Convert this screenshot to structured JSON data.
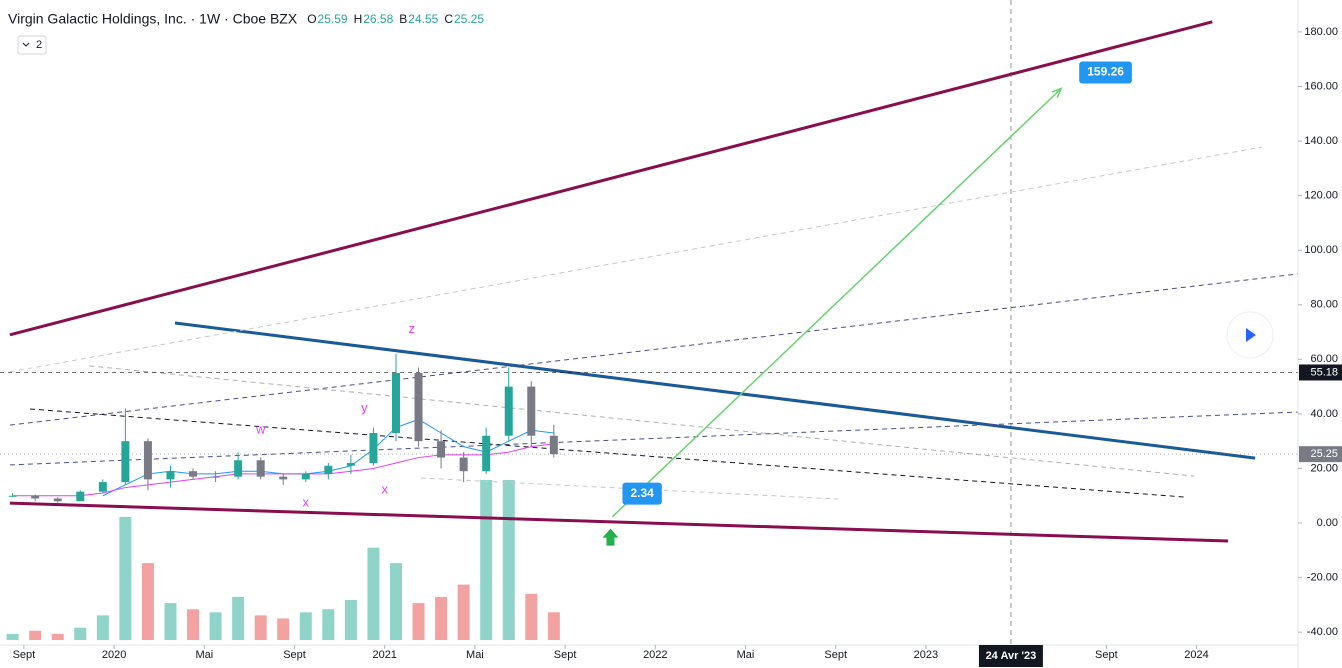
{
  "chart_data": {
    "type": "candlestick",
    "title": "Virgin Galactic Holdings, Inc. · 1W · Cboe BZX",
    "ohlc_legend": [
      {
        "label": "O",
        "value": 25.59
      },
      {
        "label": "H",
        "value": 26.58
      },
      {
        "label": "B",
        "value": 24.55
      },
      {
        "label": "C",
        "value": 25.25
      }
    ],
    "collapsed_indicators": 2,
    "x": [
      -0.5,
      0.5,
      1.5,
      2.5,
      3.5,
      4.5,
      5.5,
      6.5,
      7.5,
      8.5,
      9.5,
      10.5,
      11.5,
      12.5,
      13.5,
      14.5,
      15.5,
      16.5,
      17.5,
      18.5,
      19.5,
      20.5,
      21.5,
      22.5,
      23.5
    ],
    "open": [
      10,
      10,
      9,
      8,
      11.5,
      15,
      30,
      16,
      19,
      17,
      17,
      23,
      17,
      16,
      18,
      21,
      22,
      33,
      55,
      30,
      24,
      19,
      32,
      50,
      32
    ],
    "high": [
      11,
      10.5,
      9.5,
      12,
      16,
      42,
      31,
      21,
      20,
      19,
      26,
      24,
      18,
      19,
      22,
      25,
      35,
      62,
      57,
      34,
      26,
      35,
      57,
      52,
      36
    ],
    "low": [
      9.5,
      8,
      7.5,
      8,
      11,
      14,
      12,
      13,
      16,
      15,
      16,
      16,
      14,
      15,
      16,
      18,
      21,
      30,
      28,
      20,
      15,
      18,
      30,
      28,
      24
    ],
    "close": [
      10,
      9,
      8,
      11.5,
      15,
      30,
      16,
      19,
      17,
      17,
      23,
      17,
      16,
      18,
      21,
      22,
      33,
      55,
      30,
      24,
      19,
      32,
      50,
      32,
      25.25
    ],
    "up_color": "#26a69a",
    "down_color": "#787b86",
    "volume": [
      2,
      3,
      2,
      4,
      8,
      40,
      25,
      12,
      10,
      9,
      14,
      8,
      7,
      9,
      10,
      13,
      30,
      25,
      12,
      14,
      18,
      52,
      52,
      15,
      9
    ],
    "volume_up_color": "#8fd3c9",
    "volume_down_color": "#f2a3a1",
    "series": [
      {
        "color": "#2196f3",
        "values": [
          null,
          null,
          null,
          null,
          10,
          14,
          18,
          19,
          18,
          18,
          19,
          19,
          18,
          18,
          19,
          21,
          27,
          35,
          38,
          33,
          28,
          26,
          30,
          34,
          33
        ]
      },
      {
        "color": "#e040fb",
        "values": [
          10,
          10,
          10,
          10,
          11,
          13,
          14,
          15,
          16,
          17,
          18,
          18,
          18,
          18,
          18,
          19,
          20,
          22,
          24,
          25,
          25,
          25,
          26,
          28,
          29
        ]
      }
    ],
    "xlim": [
      -1.06,
      56.5
    ],
    "ylim": [
      -44.7,
      191.7
    ],
    "yticks": [
      {
        "value": -40,
        "label": "-40.00"
      },
      {
        "value": -20,
        "label": "-20.00"
      },
      {
        "value": 0,
        "label": "0.00"
      },
      {
        "value": 20,
        "label": "20.00"
      },
      {
        "value": 40,
        "label": "40.00"
      },
      {
        "value": 60,
        "label": "60.00"
      },
      {
        "value": 80,
        "label": "80.00"
      },
      {
        "value": 100,
        "label": "100.00"
      },
      {
        "value": 120,
        "label": "120.00"
      },
      {
        "value": 140,
        "label": "140.00"
      },
      {
        "value": 160,
        "label": "160.00"
      },
      {
        "value": 180,
        "label": "180.00"
      }
    ],
    "xticks": [
      {
        "value": 0,
        "label": "Sept"
      },
      {
        "value": 4,
        "label": "2020"
      },
      {
        "value": 8,
        "label": "Mai"
      },
      {
        "value": 12,
        "label": "Sept"
      },
      {
        "value": 16,
        "label": "2021"
      },
      {
        "value": 20,
        "label": "Mai"
      },
      {
        "value": 24,
        "label": "Sept"
      },
      {
        "value": 28,
        "label": "2022"
      },
      {
        "value": 32,
        "label": "Mai"
      },
      {
        "value": 36,
        "label": "Sept"
      },
      {
        "value": 40,
        "label": "2023"
      },
      {
        "value": 48,
        "label": "Sept"
      },
      {
        "value": 52,
        "label": "2024"
      }
    ],
    "cursor": {
      "value": 43.77,
      "label": "24 Avr '23"
    },
    "price_lines": [
      {
        "value": 55.18,
        "color": "#131722",
        "dash": "4 4"
      },
      {
        "value": 25.25,
        "color": "#787b86",
        "dash": "1 3"
      }
    ],
    "trend_lines": [
      {
        "x": [
          -0.62,
          52.7
        ],
        "y": [
          69,
          183.7
        ],
        "color": "#880e4f",
        "width": 3,
        "dash": "none"
      },
      {
        "x": [
          -0.62,
          53.4
        ],
        "y": [
          7.3,
          -6.6
        ],
        "color": "#880e4f",
        "width": 3,
        "dash": "none"
      },
      {
        "x": [
          6.7,
          54.6
        ],
        "y": [
          73.3,
          23.8
        ],
        "color": "#1a5a96",
        "width": 3,
        "dash": "none"
      },
      {
        "x": [
          -0.62,
          54.9
        ],
        "y": [
          55.4,
          137.8
        ],
        "color": "#c8c8c8",
        "width": 1,
        "dash": "5 4"
      },
      {
        "x": [
          -0.62,
          56.5
        ],
        "y": [
          35.9,
          91.3
        ],
        "color": "#4a4e8c",
        "width": 1,
        "dash": "5 4"
      },
      {
        "x": [
          -0.62,
          56.5
        ],
        "y": [
          21.3,
          40.7
        ],
        "color": "#4a4e8c",
        "width": 1,
        "dash": "5 4"
      },
      {
        "x": [
          0.27,
          51.5
        ],
        "y": [
          41.8,
          9.5
        ],
        "color": "#131722",
        "width": 1,
        "dash": "5 4"
      },
      {
        "x": [
          2.9,
          51.9
        ],
        "y": [
          57.6,
          17.2
        ],
        "color": "#b0b0b0",
        "width": 1,
        "dash": "5 4"
      },
      {
        "x": [
          17.6,
          36.1
        ],
        "y": [
          16.5,
          8.8
        ],
        "color": "#c8c8c8",
        "width": 1,
        "dash": "5 4"
      }
    ],
    "projection": {
      "x": [
        26.1,
        46.0
      ],
      "y": [
        2.34,
        159.26
      ],
      "color": "#66d36e",
      "label_color": "#2196f3"
    },
    "wave_labels": [
      {
        "text": "w",
        "x": 10.5,
        "y": 34
      },
      {
        "text": "x",
        "x": 12.5,
        "y": 7.3
      },
      {
        "text": "x",
        "x": 16,
        "y": 12
      },
      {
        "text": "y",
        "x": 15.1,
        "y": 42
      },
      {
        "text": "z",
        "x": 17.2,
        "y": 71
      }
    ],
    "wave_color": "#e040fb"
  }
}
